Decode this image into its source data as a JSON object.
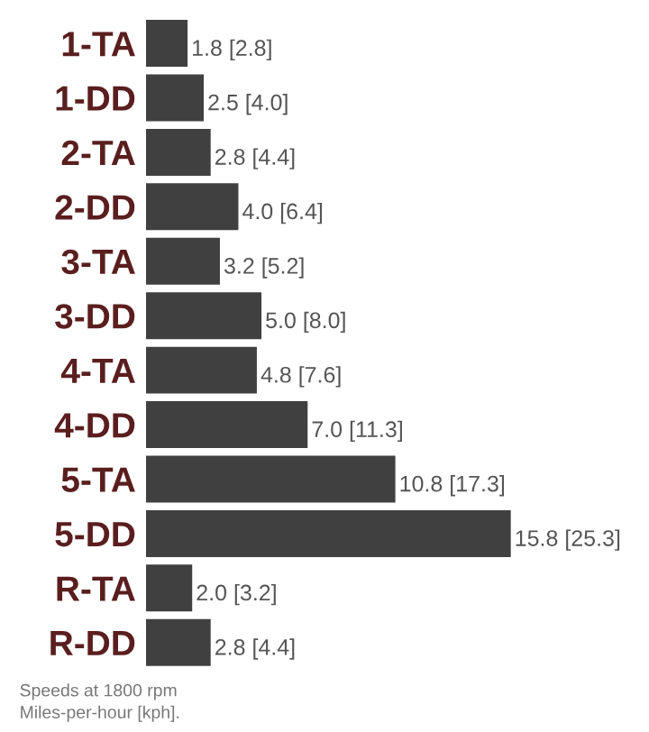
{
  "chart_data": {
    "type": "bar",
    "orientation": "horizontal",
    "categories": [
      "1-TA",
      "1-DD",
      "2-TA",
      "2-DD",
      "3-TA",
      "3-DD",
      "4-TA",
      "4-DD",
      "5-TA",
      "5-DD",
      "R-TA",
      "R-DD"
    ],
    "values": [
      1.8,
      2.5,
      2.8,
      4.0,
      3.2,
      5.0,
      4.8,
      7.0,
      10.8,
      15.8,
      2.0,
      2.8
    ],
    "color": "#404040",
    "value_labels": [
      "1.8 [2.8]",
      "2.5 [4.0]",
      "2.8 [4.4]",
      "4.0 [6.4]",
      "3.2 [5.2]",
      "5.0 [8.0]",
      "4.8 [7.6]",
      "7.0 [11.3]",
      "10.8 [17.3]",
      "15.8 [25.3]",
      "2.0 [3.2]",
      "2.8 [4.4]"
    ],
    "annotations": [
      "Speeds at 1800 rpm",
      "Miles-per-hour [kph]."
    ],
    "grid": false,
    "legend": false
  }
}
